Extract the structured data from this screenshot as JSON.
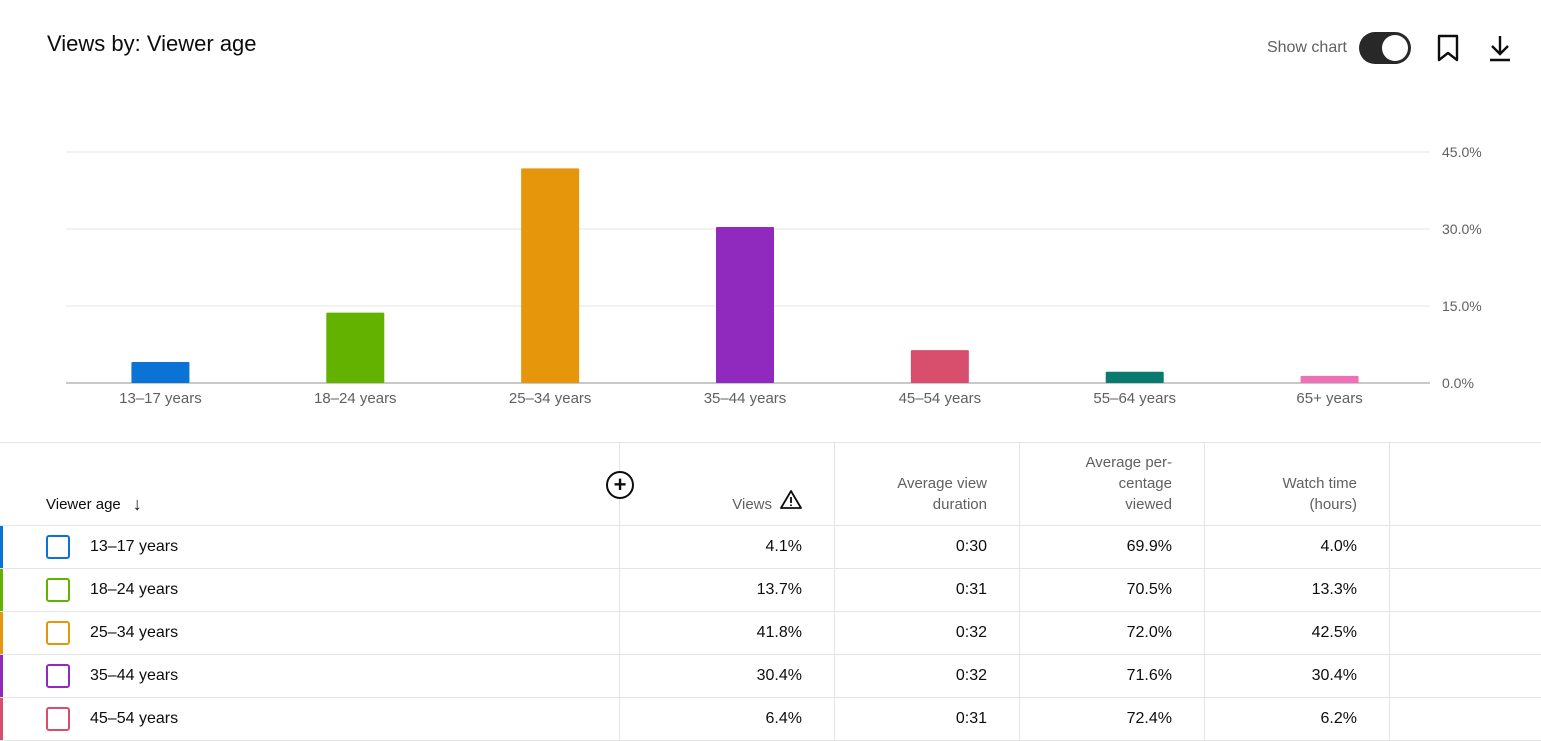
{
  "header": {
    "title": "Views by: Viewer age",
    "show_chart_label": "Show chart",
    "show_chart_on": true
  },
  "chart_data": {
    "type": "bar",
    "categories": [
      "13–17 years",
      "18–24 years",
      "25–34 years",
      "35–44 years",
      "45–54 years",
      "55–64 years",
      "65+ years"
    ],
    "values": [
      4.1,
      13.7,
      41.8,
      30.4,
      6.4,
      2.2,
      1.4
    ],
    "colors": [
      "#0b72d6",
      "#63b200",
      "#e5960b",
      "#9029bd",
      "#d84f6e",
      "#0b7a6e",
      "#f070b8"
    ],
    "yticks": [
      "0.0%",
      "15.0%",
      "30.0%",
      "45.0%"
    ],
    "ytick_values": [
      0,
      15,
      30,
      45
    ],
    "ylim": [
      0,
      45
    ],
    "grid": true,
    "title": "",
    "xlabel": "",
    "ylabel": ""
  },
  "table": {
    "headers": [
      "Viewer age",
      "Views",
      "Average view duration",
      "Average per- centage viewed",
      "Watch time (hours)"
    ],
    "rows": [
      {
        "age": "13–17 years",
        "views": "4.1%",
        "avd": "0:30",
        "apv": "69.9%",
        "wt": "4.0%"
      },
      {
        "age": "18–24 years",
        "views": "13.7%",
        "avd": "0:31",
        "apv": "70.5%",
        "wt": "13.3%"
      },
      {
        "age": "25–34 years",
        "views": "41.8%",
        "avd": "0:32",
        "apv": "72.0%",
        "wt": "42.5%"
      },
      {
        "age": "35–44 years",
        "views": "30.4%",
        "avd": "0:32",
        "apv": "71.6%",
        "wt": "30.4%"
      },
      {
        "age": "45–54 years",
        "views": "6.4%",
        "avd": "0:31",
        "apv": "72.4%",
        "wt": "6.2%"
      }
    ]
  }
}
